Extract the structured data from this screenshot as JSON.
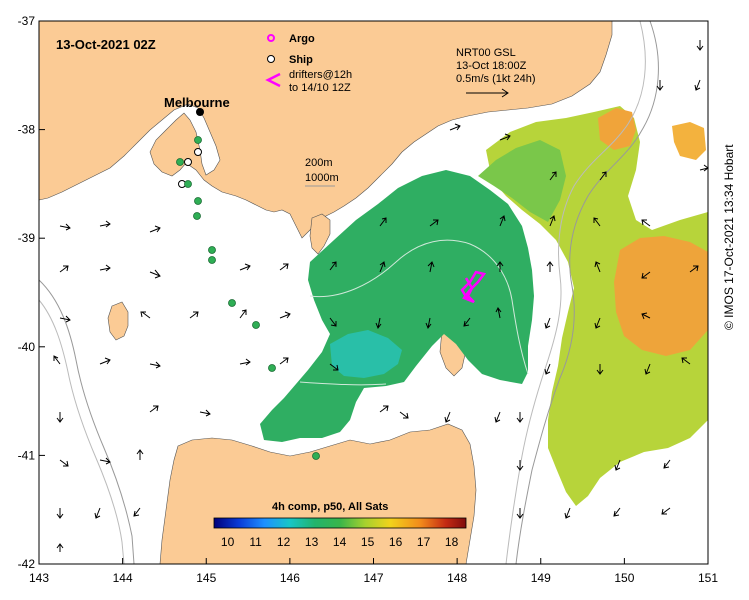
{
  "map": {
    "timestamp": "13-Oct-2021 02Z",
    "place_label": "Melbourne",
    "legend": {
      "argo": "Argo",
      "ship": "Ship",
      "drifters_line1": "drifters@12h",
      "drifters_line2": "to 14/10 12Z"
    },
    "current_scale": {
      "line1": "NRT00 GSL",
      "line2": "13-Oct 18:00Z",
      "line3": "0.5m/s (1kt 24h)"
    },
    "isobath_legend": {
      "line1": "200m",
      "line2": "1000m"
    },
    "colorbar": {
      "title": "4h comp, p50, All Sats",
      "ticks": [
        "10",
        "11",
        "12",
        "13",
        "14",
        "15",
        "16",
        "17",
        "18"
      ],
      "colors": [
        "#00007a",
        "#0a3cd8",
        "#1e90ff",
        "#18c6c8",
        "#22b46c",
        "#39b54a",
        "#a6d12e",
        "#f2d21b",
        "#f28a1b",
        "#c42a13",
        "#7f0d0d"
      ]
    },
    "x_ticks": [
      "143",
      "144",
      "145",
      "146",
      "147",
      "148",
      "149",
      "150",
      "151"
    ],
    "y_ticks": [
      "-37",
      "-38",
      "-39",
      "-40",
      "-41",
      "-42"
    ],
    "credit": "© IMOS 17-Oct-2021 13:34 Hobart",
    "colors": {
      "land": "#fbcb95",
      "sea": "#ffffff",
      "argo_magenta": "#ff00ff",
      "bathymetry": "#999999"
    }
  }
}
